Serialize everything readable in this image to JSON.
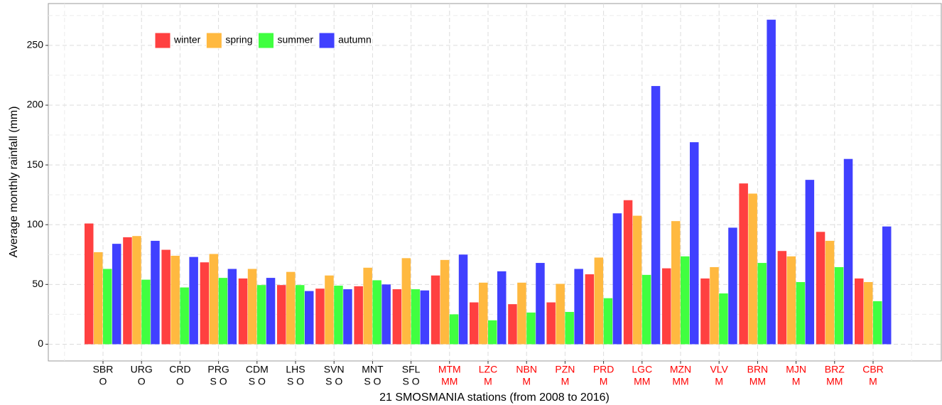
{
  "chart_data": {
    "type": "bar",
    "x_label": "21 SMOSMANIA stations (from 2008 to 2016)",
    "y_label": "Average monthly rainfall (mm)",
    "categories": [
      "SBR",
      "URG",
      "CRD",
      "PRG",
      "CDM",
      "LHS",
      "SVN",
      "MNT",
      "SFL",
      "MTM",
      "LZC",
      "NBN",
      "PZN",
      "PRD",
      "LGC",
      "MZN",
      "VLV",
      "BRN",
      "MJN",
      "BRZ",
      "CBR"
    ],
    "category_groups": [
      "O",
      "O",
      "O",
      "S O",
      "S O",
      "S O",
      "S O",
      "S O",
      "S O",
      "MM",
      "M",
      "M",
      "M",
      "M",
      "MM",
      "MM",
      "M",
      "MM",
      "M",
      "MM",
      "M"
    ],
    "category_label_colors": [
      "#000000",
      "#000000",
      "#000000",
      "#000000",
      "#000000",
      "#000000",
      "#000000",
      "#000000",
      "#000000",
      "#ff0000",
      "#ff0000",
      "#ff0000",
      "#ff0000",
      "#ff0000",
      "#ff0000",
      "#ff0000",
      "#ff0000",
      "#ff0000",
      "#ff0000",
      "#ff0000",
      "#ff0000"
    ],
    "series": [
      {
        "name": "winter",
        "color": "#ff4040",
        "values": [
          101,
          89.5,
          79,
          68.5,
          55,
          49.5,
          46.5,
          48.5,
          46,
          57.5,
          35,
          33.5,
          35,
          58.5,
          120.5,
          63.5,
          55,
          134.5,
          78,
          94,
          55
        ]
      },
      {
        "name": "spring",
        "color": "#ffb940",
        "values": [
          77,
          90.5,
          74,
          75.5,
          63,
          60.5,
          57.5,
          64,
          72,
          70.5,
          51.5,
          51.5,
          50.5,
          72.5,
          107.5,
          103,
          64.5,
          126,
          73.5,
          86.5,
          52
        ]
      },
      {
        "name": "summer",
        "color": "#40ff40",
        "values": [
          63,
          54,
          47.5,
          55.5,
          49.5,
          49.5,
          49,
          53.5,
          46,
          25,
          20,
          26.5,
          27,
          38.5,
          58,
          73.5,
          42.5,
          68,
          52,
          64.5,
          36
        ]
      },
      {
        "name": "autumn",
        "color": "#4040ff",
        "values": [
          84,
          86.5,
          73,
          63,
          55.5,
          44.5,
          46,
          50,
          45,
          75,
          61,
          68,
          63,
          109.5,
          216,
          169,
          97.5,
          271.5,
          137.5,
          155,
          98.5
        ]
      }
    ],
    "ylim": [
      -14,
      285
    ],
    "yticks": [
      0,
      50,
      100,
      150,
      200,
      250
    ],
    "y_minor_grid": [
      25,
      75,
      125,
      175,
      225,
      275
    ],
    "grid": true,
    "legend": "top-left"
  }
}
